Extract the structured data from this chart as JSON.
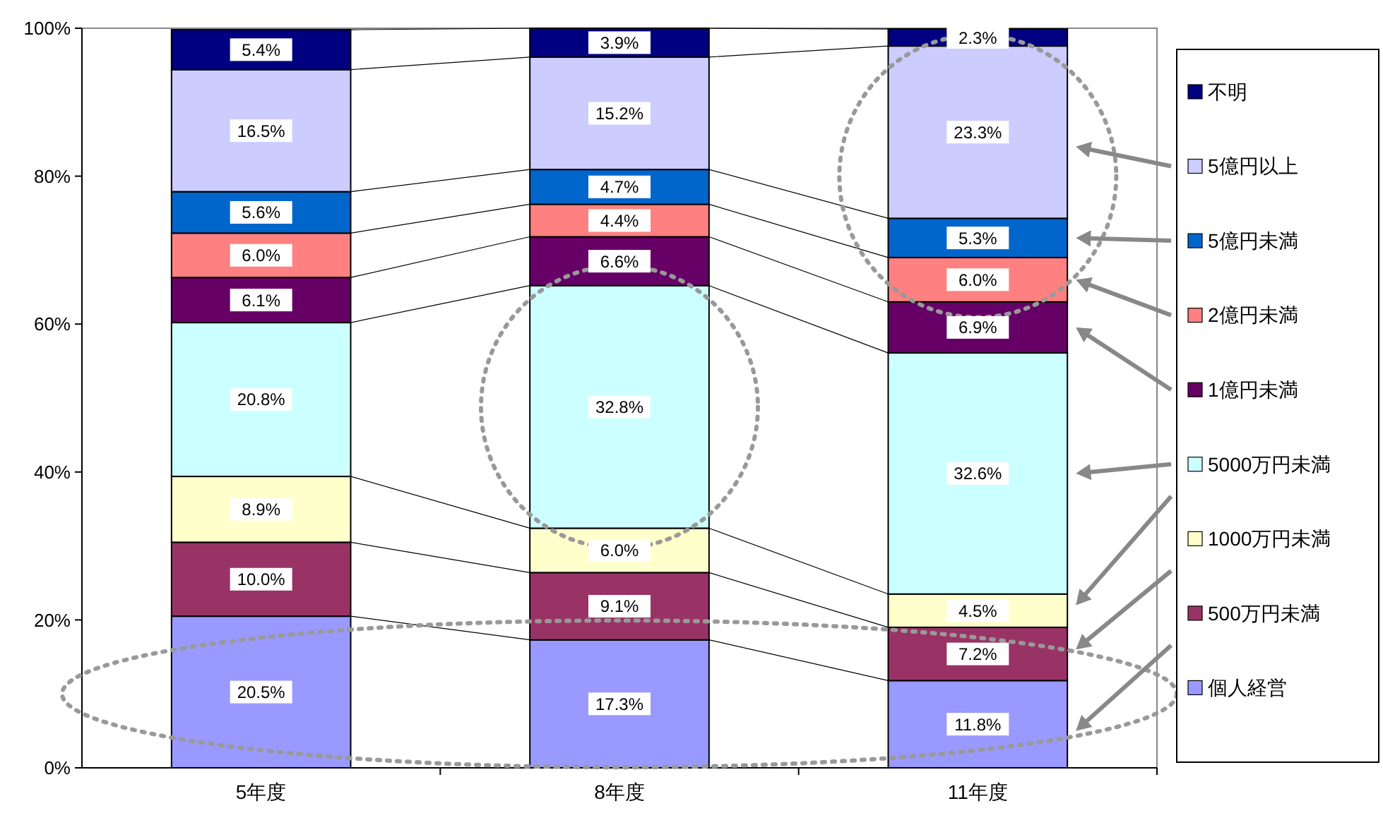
{
  "chart_data": {
    "type": "bar",
    "stacked": true,
    "categories": [
      "5年度",
      "8年度",
      "11年度"
    ],
    "series": [
      {
        "name": "個人経営",
        "color": "#9999ff",
        "values": [
          20.5,
          17.3,
          11.8
        ],
        "value_labels": [
          "20.5%",
          "17.3%",
          "11.8%"
        ]
      },
      {
        "name": "500万円未満",
        "color": "#993366",
        "values": [
          10.0,
          9.1,
          7.2
        ],
        "value_labels": [
          "10.0%",
          "9.1%",
          "7.2%"
        ]
      },
      {
        "name": "1000万円未満",
        "color": "#ffffcc",
        "values": [
          8.9,
          6.0,
          4.5
        ],
        "value_labels": [
          "8.9%",
          "6.0%",
          "4.5%"
        ]
      },
      {
        "name": "5000万円未満",
        "color": "#ccffff",
        "values": [
          20.8,
          32.8,
          32.6
        ],
        "value_labels": [
          "20.8%",
          "32.8%",
          "32.6%"
        ]
      },
      {
        "name": "1億円未満",
        "color": "#660066",
        "values": [
          6.1,
          6.6,
          6.9
        ],
        "value_labels": [
          "6.1%",
          "6.6%",
          "6.9%"
        ]
      },
      {
        "name": "2億円未満",
        "color": "#ff8080",
        "values": [
          6.0,
          4.4,
          6.0
        ],
        "value_labels": [
          "6.0%",
          "4.4%",
          "6.0%"
        ]
      },
      {
        "name": "5億円未満",
        "color": "#0066cc",
        "values": [
          5.6,
          4.7,
          5.3
        ],
        "value_labels": [
          "5.6%",
          "4.7%",
          "5.3%"
        ]
      },
      {
        "name": "5億円以上",
        "color": "#ccccff",
        "values": [
          16.5,
          15.2,
          23.3
        ],
        "value_labels": [
          "16.5%",
          "15.2%",
          "23.3%"
        ]
      },
      {
        "name": "不明",
        "color": "#000080",
        "values": [
          5.4,
          3.9,
          2.3
        ],
        "value_labels": [
          "5.4%",
          "3.9%",
          "2.3%"
        ]
      }
    ],
    "ylim": [
      0,
      100
    ],
    "yticks": [
      {
        "value": 0,
        "label": "0%"
      },
      {
        "value": 20,
        "label": "20%"
      },
      {
        "value": 40,
        "label": "40%"
      },
      {
        "value": 60,
        "label": "60%"
      },
      {
        "value": 80,
        "label": "80%"
      },
      {
        "value": 100,
        "label": "100%"
      }
    ],
    "grid": false,
    "legend": "right"
  }
}
